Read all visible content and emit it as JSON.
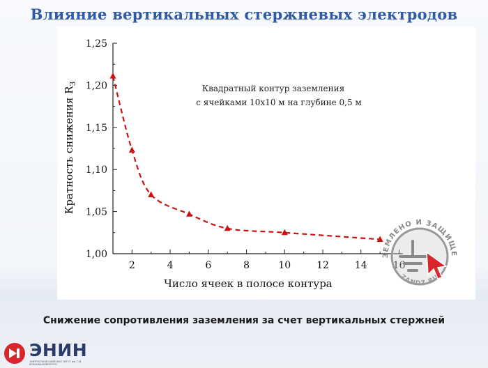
{
  "slide": {
    "title": "Влияние вертикальных стержневых электродов",
    "subtitle": "Снижение сопротивления заземления за счет вертикальных стержней"
  },
  "logo": {
    "name": "ЭНИН",
    "caption": "ЭНЕРГЕТИЧЕСКИЙ ИНСТИТУТ им. Г.М. КРЖИЖАНОВСКОГО"
  },
  "watermark": {
    "text": "ЗАЗЕМЛЕНО И ЗАЩИЩЕНО",
    "site": "ZANDZ.RU"
  },
  "chart_data": {
    "type": "line",
    "annotation": [
      "Квадратный контур заземления",
      "с ячейками 10х10 м на глубине 0,5 м"
    ],
    "xlabel": "Число ячеек в полосе контура",
    "ylabel": "Кратность снижения R",
    "ylabel_sub": "З",
    "x_ticks": [
      2,
      4,
      6,
      8,
      10,
      12,
      14,
      16
    ],
    "y_ticks": [
      1.0,
      1.05,
      1.1,
      1.15,
      1.2,
      1.25
    ],
    "y_tick_labels": [
      "1,00",
      "1,05",
      "1,10",
      "1,15",
      "1,20",
      "1,25"
    ],
    "xlim": [
      1,
      16.2
    ],
    "ylim": [
      1.0,
      1.25
    ],
    "grid": false,
    "series": [
      {
        "x": [
          1,
          2,
          3,
          5,
          7,
          10,
          15
        ],
        "values": [
          1.211,
          1.123,
          1.07,
          1.047,
          1.03,
          1.025,
          1.017
        ],
        "color": "#cc1111"
      }
    ]
  }
}
